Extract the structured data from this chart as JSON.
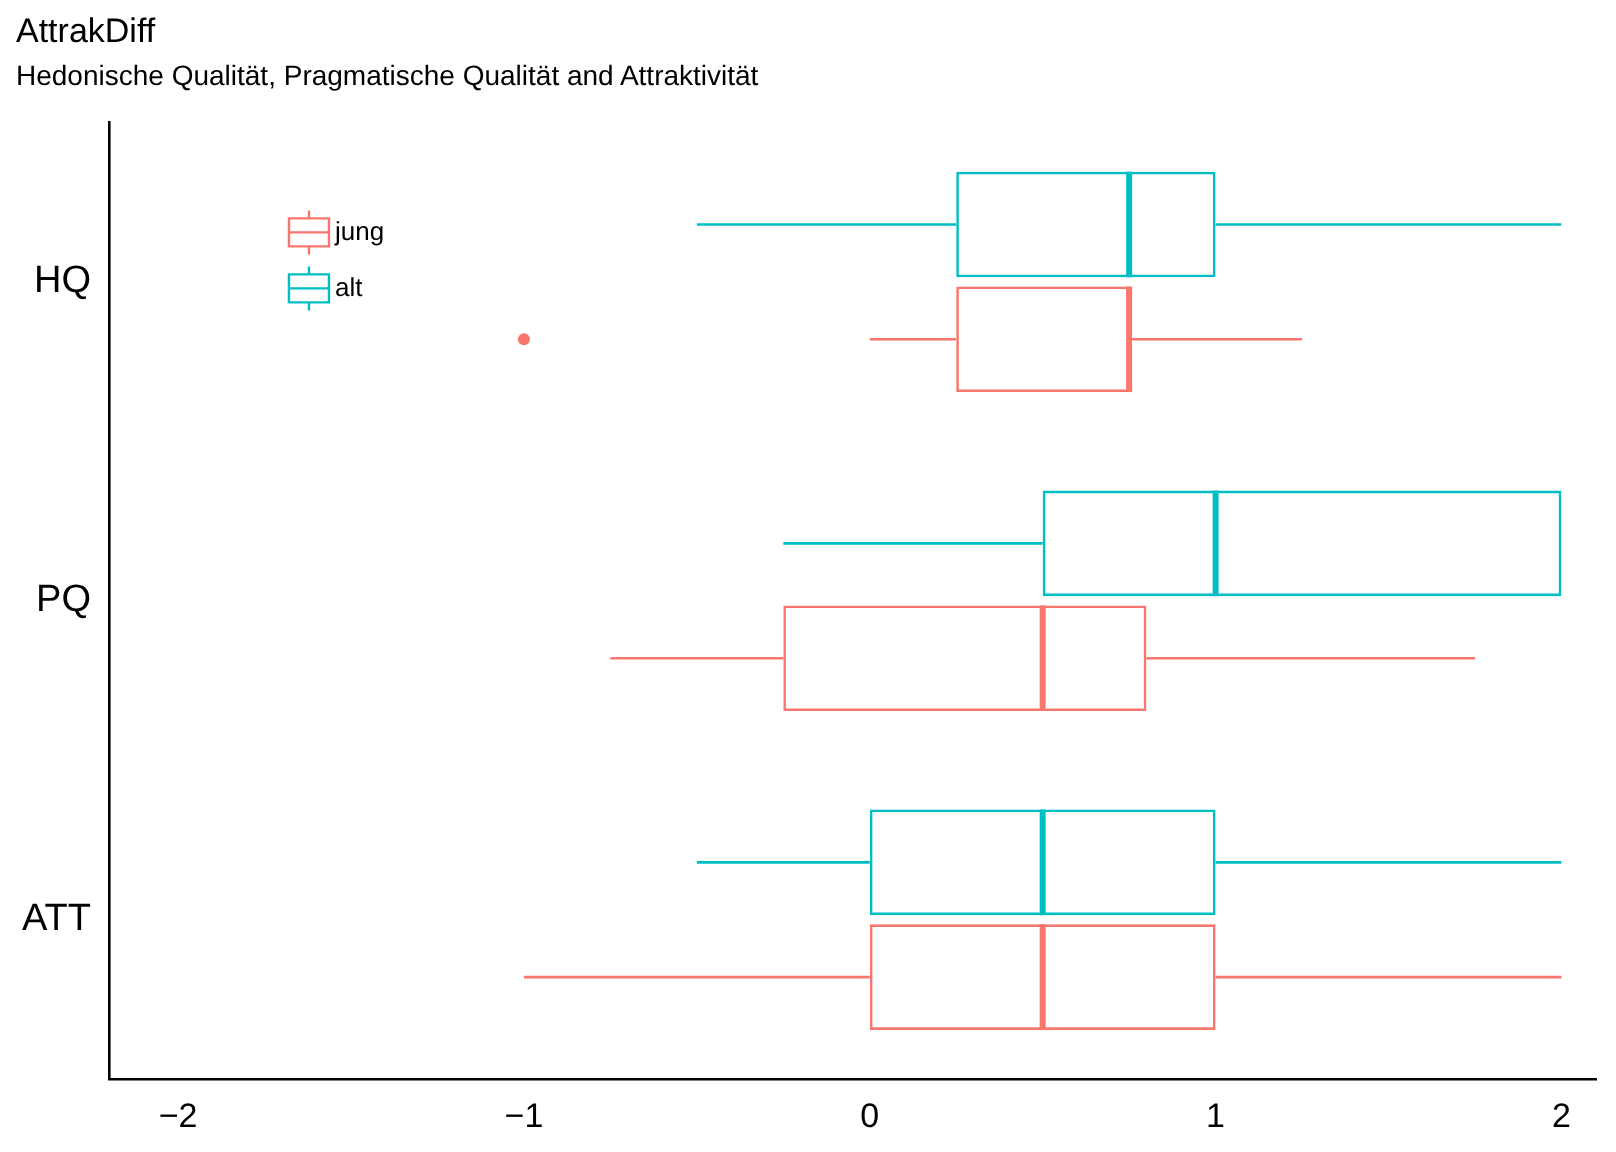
{
  "chart_data": {
    "type": "box",
    "title": "AttrakDiff",
    "subtitle": "Hedonische Qualität, Pragmatische Qualität and Attraktivität",
    "orientation": "horizontal",
    "categories": [
      "HQ",
      "PQ",
      "ATT"
    ],
    "series": [
      {
        "name": "jung",
        "color": "#f8766d",
        "boxes": [
          {
            "low": 0,
            "q1": 0.25,
            "median": 0.75,
            "q3": 0.75,
            "high": 1.25,
            "outliers": [
              -1
            ]
          },
          {
            "low": -0.75,
            "q1": -0.25,
            "median": 0.5,
            "q3": 0.8,
            "high": 1.75
          },
          {
            "low": -1,
            "q1": 0,
            "median": 0.5,
            "q3": 1,
            "high": 2
          }
        ]
      },
      {
        "name": "alt",
        "color": "#00bfc4",
        "boxes": [
          {
            "low": -0.5,
            "q1": 0.25,
            "median": 0.75,
            "q3": 1,
            "high": 2
          },
          {
            "low": -0.25,
            "q1": 0.5,
            "median": 1,
            "q3": 2,
            "high": 2
          },
          {
            "low": -0.5,
            "q1": 0,
            "median": 0.5,
            "q3": 1,
            "high": 2
          }
        ]
      }
    ],
    "xlim": [
      -2.2,
      2.1
    ],
    "xticks": [
      -2,
      -1,
      0,
      1,
      2
    ],
    "grid": false,
    "legend": "top left"
  }
}
